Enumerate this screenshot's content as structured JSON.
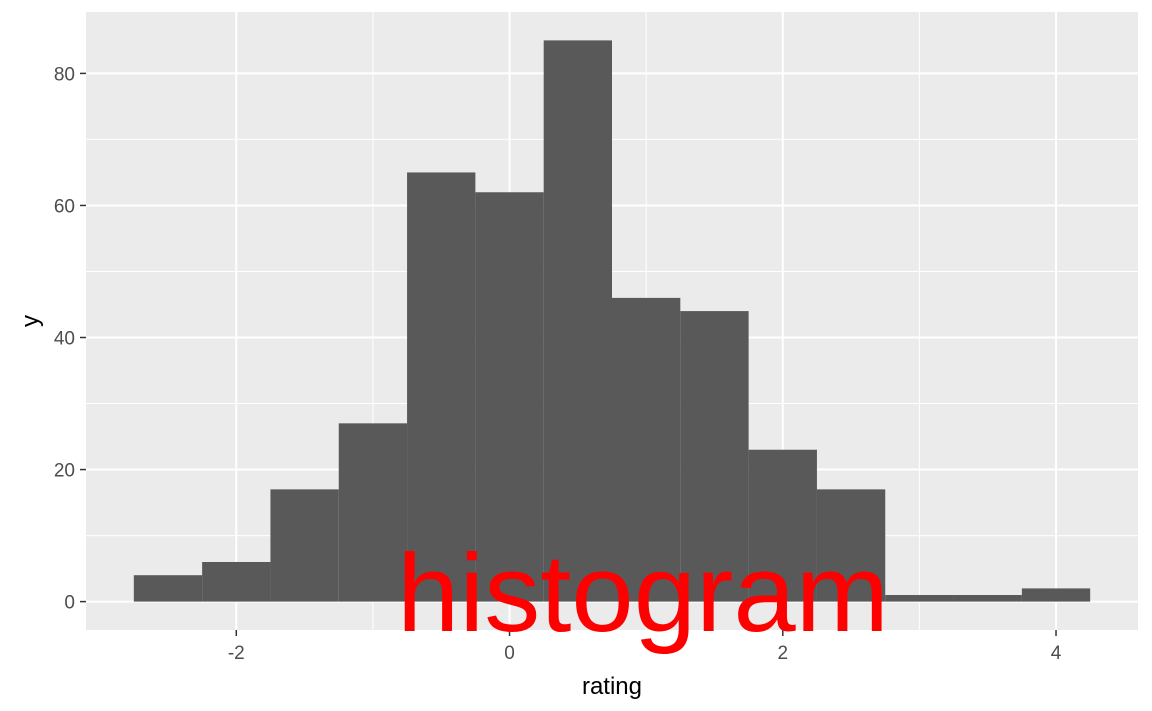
{
  "chart_data": {
    "type": "bar",
    "subtype": "histogram",
    "bin_width": 0.5,
    "bins": [
      {
        "x0": -2.75,
        "x1": -2.25,
        "count": 4
      },
      {
        "x0": -2.25,
        "x1": -1.75,
        "count": 6
      },
      {
        "x0": -1.75,
        "x1": -1.25,
        "count": 17
      },
      {
        "x0": -1.25,
        "x1": -0.75,
        "count": 27
      },
      {
        "x0": -0.75,
        "x1": -0.25,
        "count": 65
      },
      {
        "x0": -0.25,
        "x1": 0.25,
        "count": 62
      },
      {
        "x0": 0.25,
        "x1": 0.75,
        "count": 85
      },
      {
        "x0": 0.75,
        "x1": 1.25,
        "count": 46
      },
      {
        "x0": 1.25,
        "x1": 1.75,
        "count": 44
      },
      {
        "x0": 1.75,
        "x1": 2.25,
        "count": 23
      },
      {
        "x0": 2.25,
        "x1": 2.75,
        "count": 17
      },
      {
        "x0": 2.75,
        "x1": 3.25,
        "count": 1
      },
      {
        "x0": 3.25,
        "x1": 3.75,
        "count": 1
      },
      {
        "x0": 3.75,
        "x1": 4.25,
        "count": 2
      }
    ],
    "xlabel": "rating",
    "ylabel": "y",
    "xlim": [
      -3.1,
      4.6
    ],
    "ylim": [
      -4.3,
      89.3
    ],
    "x_ticks": [
      -2,
      0,
      2,
      4
    ],
    "y_ticks": [
      0,
      20,
      40,
      60,
      80
    ],
    "grid": true,
    "annotation": "histogram",
    "colors": {
      "panel": "#ebebeb",
      "grid": "#ffffff",
      "bar": "#595959",
      "annotation": "#ff0000",
      "tick_text": "#4d4d4d",
      "tick_mark": "#333333"
    }
  }
}
